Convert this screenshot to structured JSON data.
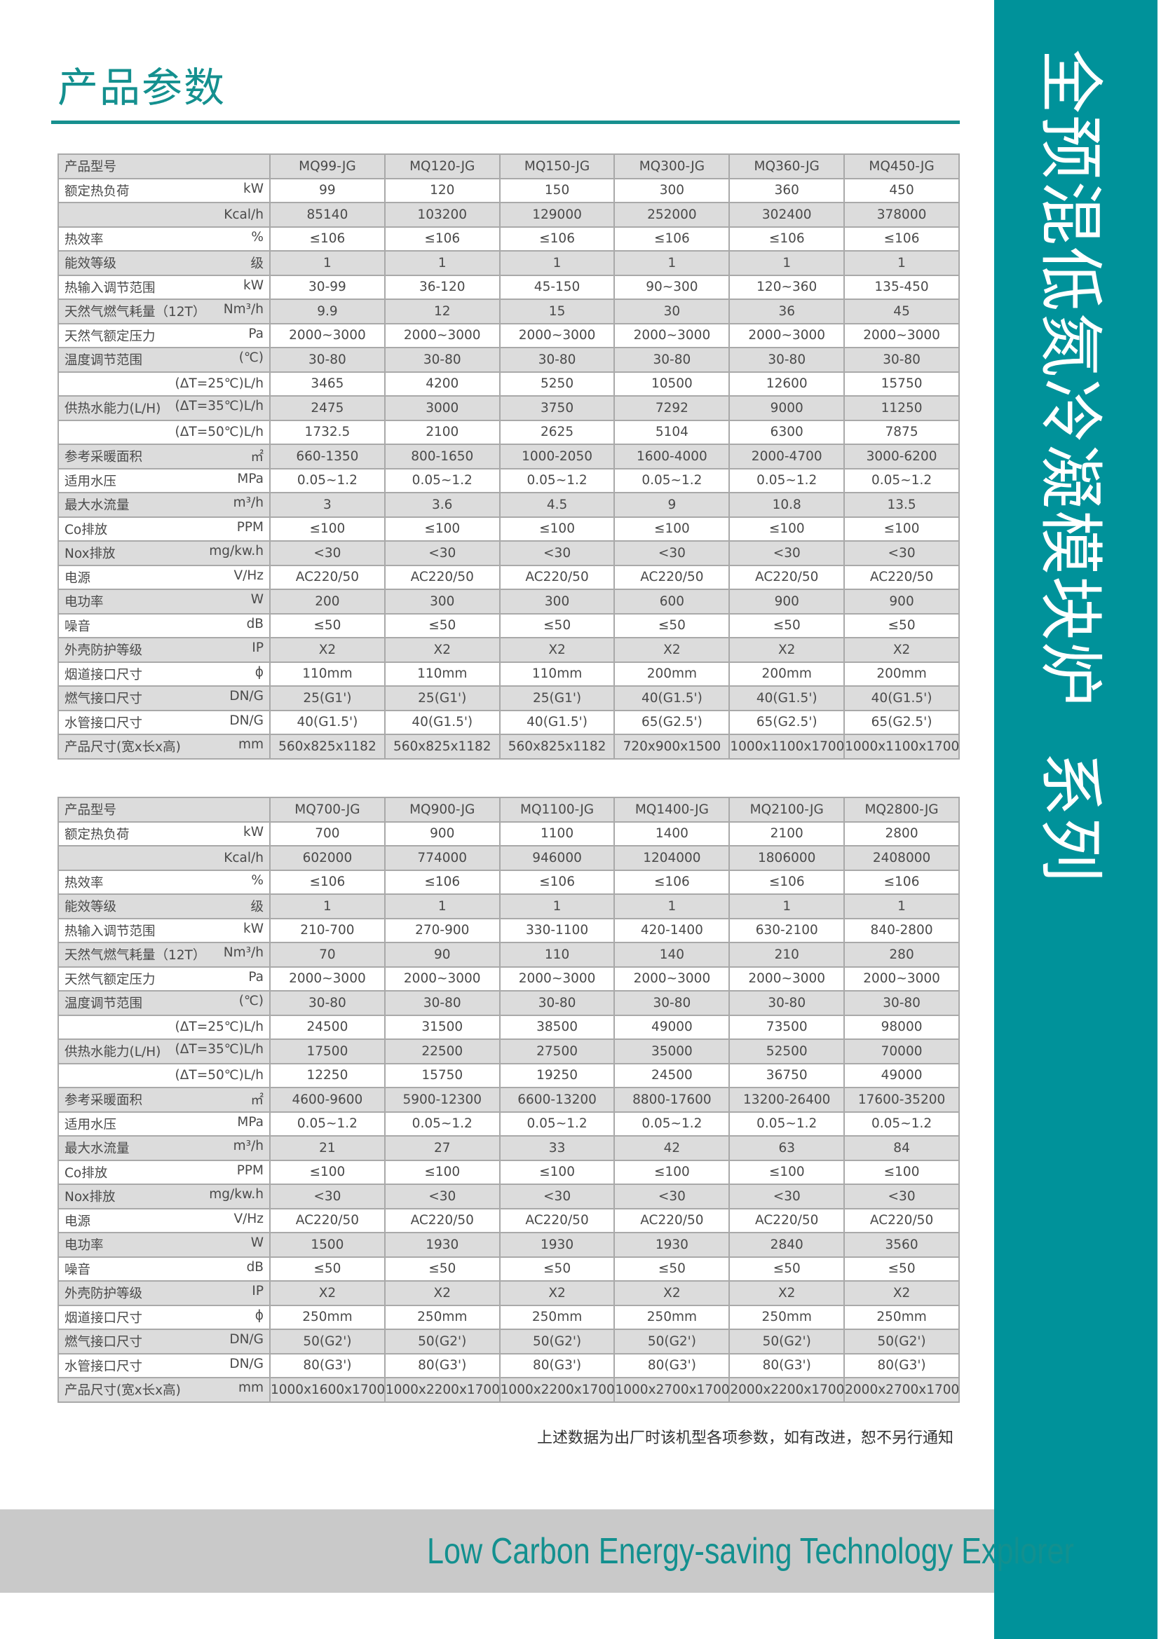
{
  "page_title": "产品参数",
  "side_title": "全预混低氮冷凝模块炉  系列",
  "footer_note": "上述数据为出厂时该机型各项参数，如有改进，恕不另行通知",
  "slogan": "Low Carbon Energy-saving Technology Explorer",
  "colors": {
    "accent": "#00929a",
    "band": "#c9c9c9",
    "row_shade": "#dcdcdc"
  },
  "tables": [
    {
      "header_label": "产品型号",
      "models": [
        "MQ99-JG",
        "MQ120-JG",
        "MQ150-JG",
        "MQ300-JG",
        "MQ360-JG",
        "MQ450-JG"
      ],
      "rows": [
        {
          "name": "额定热负荷",
          "unit": "kW",
          "values": [
            "99",
            "120",
            "150",
            "300",
            "360",
            "450"
          ]
        },
        {
          "name": "",
          "unit": "Kcal/h",
          "values": [
            "85140",
            "103200",
            "129000",
            "252000",
            "302400",
            "378000"
          ]
        },
        {
          "name": "热效率",
          "unit": "%",
          "values": [
            "≤106",
            "≤106",
            "≤106",
            "≤106",
            "≤106",
            "≤106"
          ]
        },
        {
          "name": "能效等级",
          "unit": "级",
          "values": [
            "1",
            "1",
            "1",
            "1",
            "1",
            "1"
          ]
        },
        {
          "name": "热输入调节范围",
          "unit": "kW",
          "values": [
            "30-99",
            "36-120",
            "45-150",
            "90~300",
            "120~360",
            "135-450"
          ]
        },
        {
          "name": "天然气燃气耗量（12T）",
          "unit": "Nm³/h",
          "values": [
            "9.9",
            "12",
            "15",
            "30",
            "36",
            "45"
          ]
        },
        {
          "name": "天然气额定压力",
          "unit": "Pa",
          "values": [
            "2000~3000",
            "2000~3000",
            "2000~3000",
            "2000~3000",
            "2000~3000",
            "2000~3000"
          ]
        },
        {
          "name": "温度调节范围",
          "unit": "(℃)",
          "values": [
            "30-80",
            "30-80",
            "30-80",
            "30-80",
            "30-80",
            "30-80"
          ]
        },
        {
          "name": "",
          "unit": "(ΔT=25℃)L/h",
          "values": [
            "3465",
            "4200",
            "5250",
            "10500",
            "12600",
            "15750"
          ]
        },
        {
          "name": "供热水能力(L/H)",
          "unit": "(ΔT=35℃)L/h",
          "values": [
            "2475",
            "3000",
            "3750",
            "7292",
            "9000",
            "11250"
          ]
        },
        {
          "name": "",
          "unit": "(ΔT=50℃)L/h",
          "values": [
            "1732.5",
            "2100",
            "2625",
            "5104",
            "6300",
            "7875"
          ]
        },
        {
          "name": "参考采暖面积",
          "unit": "㎡",
          "values": [
            "660-1350",
            "800-1650",
            "1000-2050",
            "1600-4000",
            "2000-4700",
            "3000-6200"
          ]
        },
        {
          "name": "适用水压",
          "unit": "MPa",
          "values": [
            "0.05~1.2",
            "0.05~1.2",
            "0.05~1.2",
            "0.05~1.2",
            "0.05~1.2",
            "0.05~1.2"
          ]
        },
        {
          "name": "最大水流量",
          "unit": "m³/h",
          "values": [
            "3",
            "3.6",
            "4.5",
            "9",
            "10.8",
            "13.5"
          ]
        },
        {
          "name": "Co排放",
          "unit": "PPM",
          "values": [
            "≤100",
            "≤100",
            "≤100",
            "≤100",
            "≤100",
            "≤100"
          ]
        },
        {
          "name": "Nox排放",
          "unit": "mg/kw.h",
          "values": [
            "<30",
            "<30",
            "<30",
            "<30",
            "<30",
            "<30"
          ]
        },
        {
          "name": "电源",
          "unit": "V/Hz",
          "values": [
            "AC220/50",
            "AC220/50",
            "AC220/50",
            "AC220/50",
            "AC220/50",
            "AC220/50"
          ]
        },
        {
          "name": "电功率",
          "unit": "W",
          "values": [
            "200",
            "300",
            "300",
            "600",
            "900",
            "900"
          ]
        },
        {
          "name": "噪音",
          "unit": "dB",
          "values": [
            "≤50",
            "≤50",
            "≤50",
            "≤50",
            "≤50",
            "≤50"
          ]
        },
        {
          "name": "外壳防护等级",
          "unit": "IP",
          "values": [
            "X2",
            "X2",
            "X2",
            "X2",
            "X2",
            "X2"
          ]
        },
        {
          "name": "烟道接口尺寸",
          "unit": "ϕ",
          "values": [
            "110mm",
            "110mm",
            "110mm",
            "200mm",
            "200mm",
            "200mm"
          ]
        },
        {
          "name": "燃气接口尺寸",
          "unit": "DN/G",
          "values": [
            "25(G1')",
            "25(G1')",
            "25(G1')",
            "40(G1.5')",
            "40(G1.5')",
            "40(G1.5')"
          ]
        },
        {
          "name": "水管接口尺寸",
          "unit": "DN/G",
          "values": [
            "40(G1.5')",
            "40(G1.5')",
            "40(G1.5')",
            "65(G2.5')",
            "65(G2.5')",
            "65(G2.5')"
          ]
        },
        {
          "name": "产品尺寸(宽x长x高)",
          "unit": "mm",
          "values": [
            "560x825x1182",
            "560x825x1182",
            "560x825x1182",
            "720x900x1500",
            "1000x1100x1700",
            "1000x1100x1700"
          ]
        }
      ]
    },
    {
      "header_label": "产品型号",
      "models": [
        "MQ700-JG",
        "MQ900-JG",
        "MQ1100-JG",
        "MQ1400-JG",
        "MQ2100-JG",
        "MQ2800-JG"
      ],
      "rows": [
        {
          "name": "额定热负荷",
          "unit": "kW",
          "values": [
            "700",
            "900",
            "1100",
            "1400",
            "2100",
            "2800"
          ]
        },
        {
          "name": "",
          "unit": "Kcal/h",
          "values": [
            "602000",
            "774000",
            "946000",
            "1204000",
            "1806000",
            "2408000"
          ]
        },
        {
          "name": "热效率",
          "unit": "%",
          "values": [
            "≤106",
            "≤106",
            "≤106",
            "≤106",
            "≤106",
            "≤106"
          ]
        },
        {
          "name": "能效等级",
          "unit": "级",
          "values": [
            "1",
            "1",
            "1",
            "1",
            "1",
            "1"
          ]
        },
        {
          "name": "热输入调节范围",
          "unit": "kW",
          "values": [
            "210-700",
            "270-900",
            "330-1100",
            "420-1400",
            "630-2100",
            "840-2800"
          ]
        },
        {
          "name": "天然气燃气耗量（12T）",
          "unit": "Nm³/h",
          "values": [
            "70",
            "90",
            "110",
            "140",
            "210",
            "280"
          ]
        },
        {
          "name": "天然气额定压力",
          "unit": "Pa",
          "values": [
            "2000~3000",
            "2000~3000",
            "2000~3000",
            "2000~3000",
            "2000~3000",
            "2000~3000"
          ]
        },
        {
          "name": "温度调节范围",
          "unit": "(℃)",
          "values": [
            "30-80",
            "30-80",
            "30-80",
            "30-80",
            "30-80",
            "30-80"
          ]
        },
        {
          "name": "",
          "unit": "(ΔT=25℃)L/h",
          "values": [
            "24500",
            "31500",
            "38500",
            "49000",
            "73500",
            "98000"
          ]
        },
        {
          "name": "供热水能力(L/H)",
          "unit": "(ΔT=35℃)L/h",
          "values": [
            "17500",
            "22500",
            "27500",
            "35000",
            "52500",
            "70000"
          ]
        },
        {
          "name": "",
          "unit": "(ΔT=50℃)L/h",
          "values": [
            "12250",
            "15750",
            "19250",
            "24500",
            "36750",
            "49000"
          ]
        },
        {
          "name": "参考采暖面积",
          "unit": "㎡",
          "values": [
            "4600-9600",
            "5900-12300",
            "6600-13200",
            "8800-17600",
            "13200-26400",
            "17600-35200"
          ]
        },
        {
          "name": "适用水压",
          "unit": "MPa",
          "values": [
            "0.05~1.2",
            "0.05~1.2",
            "0.05~1.2",
            "0.05~1.2",
            "0.05~1.2",
            "0.05~1.2"
          ]
        },
        {
          "name": "最大水流量",
          "unit": "m³/h",
          "values": [
            "21",
            "27",
            "33",
            "42",
            "63",
            "84"
          ]
        },
        {
          "name": "Co排放",
          "unit": "PPM",
          "values": [
            "≤100",
            "≤100",
            "≤100",
            "≤100",
            "≤100",
            "≤100"
          ]
        },
        {
          "name": "Nox排放",
          "unit": "mg/kw.h",
          "values": [
            "<30",
            "<30",
            "<30",
            "<30",
            "<30",
            "<30"
          ]
        },
        {
          "name": "电源",
          "unit": "V/Hz",
          "values": [
            "AC220/50",
            "AC220/50",
            "AC220/50",
            "AC220/50",
            "AC220/50",
            "AC220/50"
          ]
        },
        {
          "name": "电功率",
          "unit": "W",
          "values": [
            "1500",
            "1930",
            "1930",
            "1930",
            "2840",
            "3560"
          ]
        },
        {
          "name": "噪音",
          "unit": "dB",
          "values": [
            "≤50",
            "≤50",
            "≤50",
            "≤50",
            "≤50",
            "≤50"
          ]
        },
        {
          "name": "外壳防护等级",
          "unit": "IP",
          "values": [
            "X2",
            "X2",
            "X2",
            "X2",
            "X2",
            "X2"
          ]
        },
        {
          "name": "烟道接口尺寸",
          "unit": "ϕ",
          "values": [
            "250mm",
            "250mm",
            "250mm",
            "250mm",
            "250mm",
            "250mm"
          ]
        },
        {
          "name": "燃气接口尺寸",
          "unit": "DN/G",
          "values": [
            "50(G2')",
            "50(G2')",
            "50(G2')",
            "50(G2')",
            "50(G2')",
            "50(G2')"
          ]
        },
        {
          "name": "水管接口尺寸",
          "unit": "DN/G",
          "values": [
            "80(G3')",
            "80(G3')",
            "80(G3')",
            "80(G3')",
            "80(G3')",
            "80(G3')"
          ]
        },
        {
          "name": "产品尺寸(宽x长x高)",
          "unit": "mm",
          "values": [
            "1000x1600x1700",
            "1000x2200x1700",
            "1000x2200x1700",
            "1000x2700x1700",
            "2000x2200x1700",
            "2000x2700x1700"
          ]
        }
      ]
    }
  ]
}
